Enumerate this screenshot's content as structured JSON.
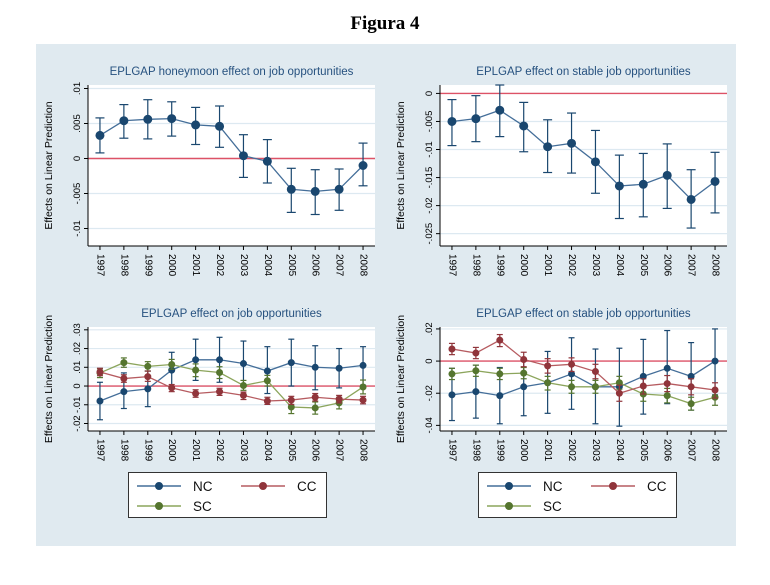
{
  "figure_title": "Figura 4",
  "colors": {
    "background": "#e0eaf0",
    "plot_bg": "#ffffff",
    "grid": "#dde9f1",
    "axis": "#000000",
    "zero_line": "#dd5266",
    "title_text": "#26517f",
    "tick_text": "#000000",
    "nc_marker": "#1a476f",
    "nc_line": "#446e99",
    "cc_marker": "#90353b",
    "cc_line": "#b65b60",
    "sc_marker": "#55752f",
    "sc_line": "#8ca55c"
  },
  "legend": {
    "items": [
      {
        "label": "NC",
        "series": "nc"
      },
      {
        "label": "CC",
        "series": "cc"
      },
      {
        "label": "SC",
        "series": "sc"
      }
    ]
  },
  "chart_data": [
    {
      "type": "line",
      "title": "EPLGAP honeymoon effect on job opportunities",
      "ylabel": "Effects on Linear Prediction",
      "x": [
        "1997",
        "1998",
        "1999",
        "2000",
        "2001",
        "2002",
        "2003",
        "2004",
        "2005",
        "2006",
        "2007",
        "2008"
      ],
      "ylim": [
        -0.0125,
        0.0105
      ],
      "ytick_values": [
        0.01,
        0.005,
        0,
        -0.005,
        -0.01
      ],
      "ytick_labels": [
        ".01",
        ".005",
        "0",
        "-.005",
        "-.01"
      ],
      "zero_line": 0,
      "legend_shown": false,
      "series": [
        {
          "name": "NC",
          "color_key": "nc",
          "values": [
            0.0033,
            0.0054,
            0.0056,
            0.0057,
            0.0048,
            0.0046,
            0.0004,
            -0.0004,
            -0.0044,
            -0.0047,
            -0.0044,
            -0.001
          ],
          "ci_low": [
            0.0008,
            0.0029,
            0.0028,
            0.0032,
            0.002,
            0.0016,
            -0.0027,
            -0.0035,
            -0.0077,
            -0.008,
            -0.0074,
            -0.0039
          ],
          "ci_high": [
            0.0058,
            0.0077,
            0.0084,
            0.0081,
            0.0073,
            0.0075,
            0.0034,
            0.0027,
            -0.0014,
            -0.0016,
            -0.0015,
            0.0022
          ]
        }
      ]
    },
    {
      "type": "line",
      "title": "EPLGAP effect on stable job opportunities",
      "ylabel": "Effects on Linear Prediction",
      "x": [
        "1997",
        "1998",
        "1999",
        "2000",
        "2001",
        "2002",
        "2003",
        "2004",
        "2005",
        "2006",
        "2007",
        "2008"
      ],
      "ylim": [
        -0.0272,
        0.0015
      ],
      "ytick_values": [
        0,
        -0.005,
        -0.01,
        -0.015,
        -0.02,
        -0.025
      ],
      "ytick_labels": [
        "0",
        "-.005",
        "-.01",
        "-.015",
        "-.02",
        "-.025"
      ],
      "zero_line": 0,
      "legend_shown": false,
      "series": [
        {
          "name": "NC",
          "color_key": "nc",
          "values": [
            -0.005,
            -0.0045,
            -0.003,
            -0.0058,
            -0.0095,
            -0.0089,
            -0.0122,
            -0.0165,
            -0.0162,
            -0.0146,
            -0.0189,
            -0.0157
          ],
          "ci_low": [
            -0.0093,
            -0.0086,
            -0.0077,
            -0.0104,
            -0.0141,
            -0.0142,
            -0.0178,
            -0.0223,
            -0.022,
            -0.0205,
            -0.024,
            -0.0213
          ],
          "ci_high": [
            -0.0011,
            -0.0004,
            0.0015,
            -0.0016,
            -0.0047,
            -0.0035,
            -0.0066,
            -0.011,
            -0.0107,
            -0.009,
            -0.0136,
            -0.0105
          ]
        }
      ]
    },
    {
      "type": "line",
      "title": "EPLGAP effect on job opportunities",
      "ylabel": "Effects on Linear Prediction",
      "x": [
        "1997",
        "1998",
        "1999",
        "2000",
        "2001",
        "2002",
        "2003",
        "2004",
        "2005",
        "2006",
        "2007",
        "2008"
      ],
      "ylim": [
        -0.024,
        0.0315
      ],
      "ytick_values": [
        0.03,
        0.02,
        0.01,
        0,
        -0.01,
        -0.02
      ],
      "ytick_labels": [
        ".03",
        ".02",
        ".01",
        "0",
        "-.01",
        "-.02"
      ],
      "zero_line": 0,
      "legend_shown": true,
      "series": [
        {
          "name": "NC",
          "color_key": "nc",
          "values": [
            -0.008,
            -0.003,
            -0.0015,
            0.0085,
            0.014,
            0.014,
            0.012,
            0.008,
            0.0125,
            0.01,
            0.0095,
            0.011
          ],
          "ci_low": [
            -0.018,
            -0.012,
            -0.011,
            -0.0005,
            0.003,
            0.002,
            0.0,
            -0.004,
            0.0,
            -0.002,
            -0.001,
            0.0005
          ],
          "ci_high": [
            0.002,
            0.007,
            0.008,
            0.018,
            0.025,
            0.026,
            0.024,
            0.021,
            0.025,
            0.0215,
            0.02,
            0.021
          ]
        },
        {
          "name": "SC",
          "color_key": "sc",
          "values": [
            0.007,
            0.0125,
            0.0105,
            0.0115,
            0.0085,
            0.0072,
            0.0003,
            0.0028,
            -0.0112,
            -0.0117,
            -0.009,
            -0.0005
          ],
          "ci_low": [
            0.0045,
            0.01,
            0.008,
            0.009,
            0.005,
            0.004,
            -0.0023,
            0.0,
            -0.0147,
            -0.015,
            -0.0122,
            -0.0042
          ],
          "ci_high": [
            0.0092,
            0.015,
            0.013,
            0.0142,
            0.0118,
            0.0103,
            0.003,
            0.0057,
            -0.008,
            -0.0085,
            -0.006,
            0.0032
          ]
        },
        {
          "name": "CC",
          "color_key": "cc",
          "values": [
            0.0075,
            0.004,
            0.005,
            -0.001,
            -0.004,
            -0.003,
            -0.005,
            -0.008,
            -0.0075,
            -0.006,
            -0.007,
            -0.0075
          ],
          "ci_low": [
            0.0055,
            0.002,
            0.0025,
            -0.003,
            -0.006,
            -0.005,
            -0.0072,
            -0.0098,
            -0.0098,
            -0.008,
            -0.009,
            -0.0095
          ],
          "ci_high": [
            0.0095,
            0.006,
            0.008,
            0.0008,
            -0.002,
            -0.0012,
            -0.0032,
            -0.006,
            -0.0055,
            -0.004,
            -0.005,
            -0.0055
          ]
        }
      ]
    },
    {
      "type": "line",
      "title": "EPLGAP effect on stable job opportunities",
      "ylabel": "Effects on Linear Prediction",
      "x": [
        "1997",
        "1998",
        "1999",
        "2000",
        "2001",
        "2002",
        "2003",
        "2004",
        "2005",
        "2006",
        "2007",
        "2008"
      ],
      "ylim": [
        -0.0435,
        0.0212
      ],
      "ytick_values": [
        0.02,
        0,
        -0.02,
        -0.04
      ],
      "ytick_labels": [
        ".02",
        "0",
        "-.02",
        "-.04"
      ],
      "zero_line": 0,
      "legend_shown": true,
      "series": [
        {
          "name": "NC",
          "color_key": "nc",
          "values": [
            -0.021,
            -0.019,
            -0.0215,
            -0.016,
            -0.0135,
            -0.008,
            -0.016,
            -0.016,
            -0.0095,
            -0.0045,
            -0.0095,
            0.0
          ],
          "ci_low": [
            -0.037,
            -0.0355,
            -0.039,
            -0.034,
            -0.0325,
            -0.03,
            -0.039,
            -0.0405,
            -0.033,
            -0.0265,
            -0.0305,
            -0.021
          ],
          "ci_high": [
            -0.0045,
            -0.0025,
            -0.004,
            0.0015,
            0.006,
            0.0145,
            0.0075,
            0.008,
            0.0135,
            0.019,
            0.0115,
            0.02
          ]
        },
        {
          "name": "SC",
          "color_key": "sc",
          "values": [
            -0.008,
            -0.006,
            -0.008,
            -0.0075,
            -0.0135,
            -0.016,
            -0.016,
            -0.0135,
            -0.0205,
            -0.0215,
            -0.0265,
            -0.0225
          ],
          "ci_low": [
            -0.0115,
            -0.0095,
            -0.0115,
            -0.011,
            -0.018,
            -0.02,
            -0.02,
            -0.0175,
            -0.025,
            -0.026,
            -0.0305,
            -0.0275
          ],
          "ci_high": [
            -0.0045,
            -0.0025,
            -0.0045,
            -0.004,
            -0.0095,
            -0.012,
            -0.012,
            -0.0095,
            -0.016,
            -0.017,
            -0.0225,
            -0.018
          ]
        },
        {
          "name": "CC",
          "color_key": "cc",
          "values": [
            0.0075,
            0.005,
            0.013,
            0.001,
            -0.003,
            -0.002,
            -0.0065,
            -0.02,
            -0.0155,
            -0.014,
            -0.016,
            -0.018
          ],
          "ci_low": [
            0.004,
            0.0015,
            0.009,
            -0.0035,
            -0.0075,
            -0.0065,
            -0.011,
            -0.025,
            -0.0205,
            -0.019,
            -0.021,
            -0.023
          ],
          "ci_high": [
            0.011,
            0.0085,
            0.0165,
            0.0055,
            0.0015,
            0.002,
            -0.002,
            -0.015,
            -0.011,
            -0.009,
            -0.011,
            -0.0135
          ]
        }
      ]
    }
  ]
}
